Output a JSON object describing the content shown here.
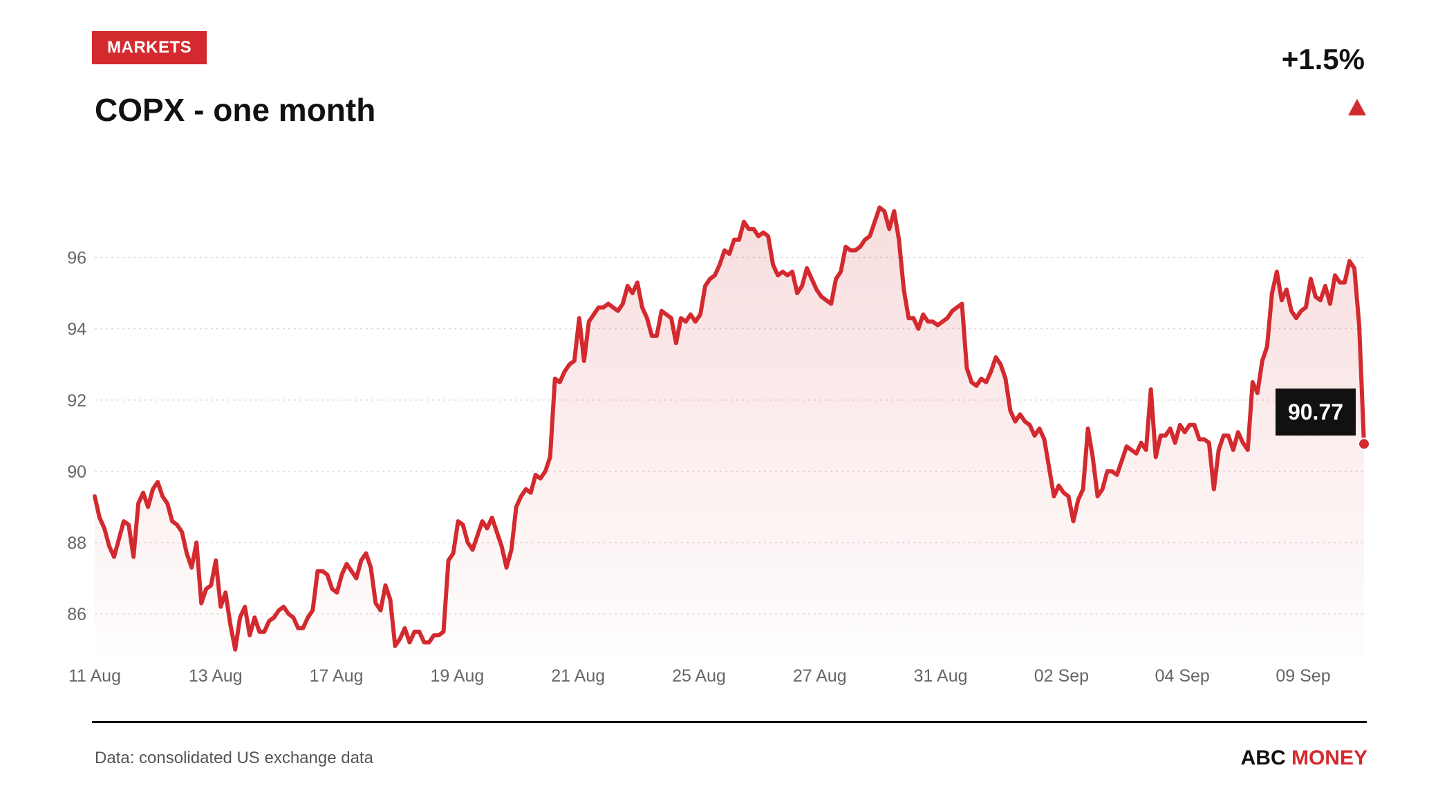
{
  "header": {
    "badge": "MARKETS",
    "title": "COPX - one month",
    "change": "+1.5%"
  },
  "footer": {
    "source": "Data: consolidated US exchange data",
    "brand_part1": "ABC",
    "brand_part2": "MONEY"
  },
  "colors": {
    "accent": "#d32a2f",
    "text": "#111111",
    "muted": "#666666",
    "grid": "#d9d9d9"
  },
  "icons": {
    "change_direction": "up-triangle-icon"
  },
  "chart_data": {
    "type": "area",
    "title": "COPX - one month",
    "xlabel": "",
    "ylabel": "",
    "ylim": [
      84.8,
      97.6
    ],
    "yticks": [
      86,
      88,
      90,
      92,
      94,
      96
    ],
    "x_tick_labels": [
      "11 Aug",
      "13 Aug",
      "17 Aug",
      "19 Aug",
      "21 Aug",
      "25 Aug",
      "27 Aug",
      "31 Aug",
      "02 Sep",
      "04 Sep",
      "09 Sep"
    ],
    "grid": true,
    "last_value": 90.77,
    "last_value_label": "90.77",
    "series": [
      {
        "values": [
          89.3,
          88.7,
          88.4,
          87.9,
          87.6,
          88.1,
          88.6,
          88.5,
          87.6,
          89.1,
          89.4,
          89.0,
          89.5,
          89.7,
          89.3,
          89.1,
          88.6,
          88.5,
          88.3,
          87.7,
          87.3,
          88.0,
          86.3,
          86.7,
          86.8,
          87.5,
          86.2,
          86.6,
          85.7,
          85.0,
          85.9,
          86.2,
          85.4,
          85.9,
          85.5,
          85.5,
          85.8,
          85.9,
          86.1,
          86.2,
          86.0,
          85.9,
          85.6,
          85.6,
          85.9,
          86.1,
          87.2,
          87.2,
          87.1,
          86.7,
          86.6,
          87.1,
          87.4,
          87.2,
          87.0,
          87.5,
          87.7,
          87.3,
          86.3,
          86.1,
          86.8,
          86.4,
          85.1,
          85.3,
          85.6,
          85.2,
          85.5,
          85.5,
          85.2,
          85.2,
          85.4,
          85.4,
          85.5,
          87.5,
          87.7,
          88.6,
          88.5,
          88.0,
          87.8,
          88.2,
          88.6,
          88.4,
          88.7,
          88.3,
          87.9,
          87.3,
          87.8,
          89.0,
          89.3,
          89.5,
          89.4,
          89.9,
          89.8,
          90.0,
          90.4,
          92.6,
          92.5,
          92.8,
          93.0,
          93.1,
          94.3,
          93.1,
          94.2,
          94.4,
          94.6,
          94.6,
          94.7,
          94.6,
          94.5,
          94.7,
          95.2,
          95.0,
          95.3,
          94.6,
          94.3,
          93.8,
          93.8,
          94.5,
          94.4,
          94.3,
          93.6,
          94.3,
          94.2,
          94.4,
          94.2,
          94.4,
          95.2,
          95.4,
          95.5,
          95.8,
          96.2,
          96.1,
          96.5,
          96.5,
          97.0,
          96.8,
          96.8,
          96.6,
          96.7,
          96.6,
          95.8,
          95.5,
          95.6,
          95.5,
          95.6,
          95.0,
          95.2,
          95.7,
          95.4,
          95.1,
          94.9,
          94.8,
          94.7,
          95.4,
          95.6,
          96.3,
          96.2,
          96.2,
          96.3,
          96.5,
          96.6,
          97.0,
          97.4,
          97.3,
          96.8,
          97.3,
          96.5,
          95.1,
          94.3,
          94.3,
          94.0,
          94.4,
          94.2,
          94.2,
          94.1,
          94.2,
          94.3,
          94.5,
          94.6,
          94.7,
          92.9,
          92.5,
          92.4,
          92.6,
          92.5,
          92.8,
          93.2,
          93.0,
          92.6,
          91.7,
          91.4,
          91.6,
          91.4,
          91.3,
          91.0,
          91.2,
          90.9,
          90.1,
          89.3,
          89.6,
          89.4,
          89.3,
          88.6,
          89.2,
          89.5,
          91.2,
          90.4,
          89.3,
          89.5,
          90.0,
          90.0,
          89.9,
          90.3,
          90.7,
          90.6,
          90.5,
          90.8,
          90.6,
          92.3,
          90.4,
          91.0,
          91.0,
          91.2,
          90.8,
          91.3,
          91.1,
          91.3,
          91.3,
          90.9,
          90.9,
          90.8,
          89.5,
          90.6,
          91.0,
          91.0,
          90.6,
          91.1,
          90.8,
          90.6,
          92.5,
          92.2,
          93.1,
          93.5,
          95.0,
          95.6,
          94.8,
          95.1,
          94.5,
          94.3,
          94.5,
          94.6,
          95.4,
          94.9,
          94.8,
          95.2,
          94.7,
          95.5,
          95.3,
          95.3,
          95.9,
          95.7,
          94.1,
          90.77
        ]
      }
    ]
  }
}
